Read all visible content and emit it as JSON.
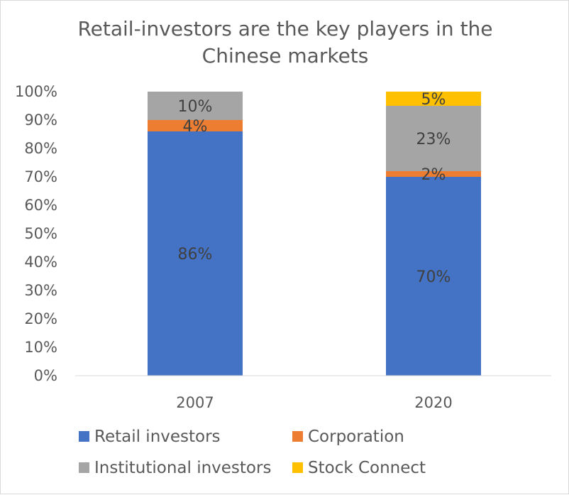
{
  "chart_data": {
    "type": "bar",
    "stacked": true,
    "title": "Retail-investors are the key players in the Chinese markets",
    "title_lines": [
      "Retail-investors are the key players in the",
      "Chinese markets"
    ],
    "categories": [
      "2007",
      "2020"
    ],
    "series": [
      {
        "name": "Retail investors",
        "color": "#4472C4",
        "values": [
          86,
          70
        ],
        "labels": [
          "86%",
          "70%"
        ]
      },
      {
        "name": "Corporation",
        "color": "#ED7D31",
        "values": [
          4,
          2
        ],
        "labels": [
          "4%",
          "2%"
        ]
      },
      {
        "name": "Institutional investors",
        "color": "#A5A5A5",
        "values": [
          10,
          23
        ],
        "labels": [
          "10%",
          "23%"
        ]
      },
      {
        "name": "Stock Connect",
        "color": "#FFC000",
        "values": [
          0,
          5
        ],
        "labels": [
          "",
          "5%"
        ]
      }
    ],
    "ylim": [
      0,
      100
    ],
    "yticks": [
      "0%",
      "10%",
      "20%",
      "30%",
      "40%",
      "50%",
      "60%",
      "70%",
      "80%",
      "90%",
      "100%"
    ],
    "grid": false,
    "legend_position": "bottom",
    "legend_order": [
      "Retail investors",
      "Corporation",
      "Institutional investors",
      "Stock Connect"
    ]
  }
}
